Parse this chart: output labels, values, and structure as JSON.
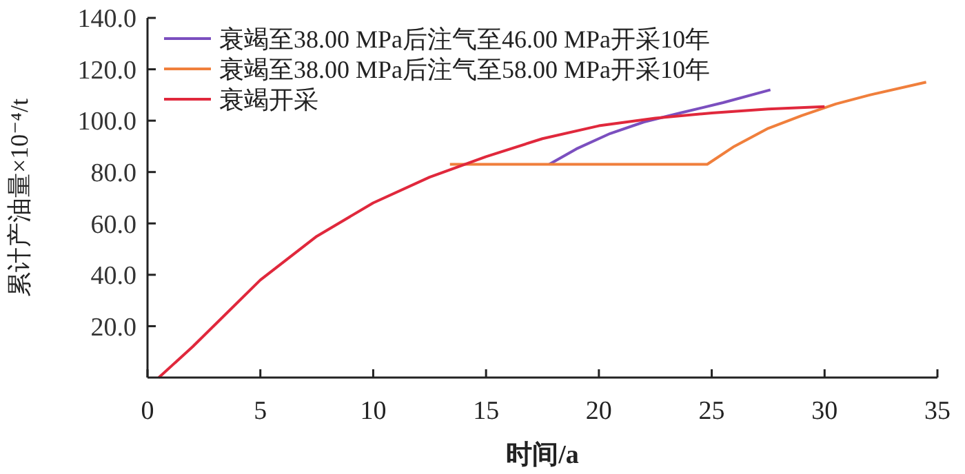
{
  "chart_data": {
    "type": "line",
    "xlabel": "时间/a",
    "ylabel": "累计产油量×10⁻⁴/t",
    "xlim": [
      0,
      35
    ],
    "xticks": [
      0,
      5,
      10,
      15,
      20,
      25,
      30,
      35
    ],
    "ylim": [
      0,
      140
    ],
    "yticks": [
      {
        "value": 20,
        "label": "20.0"
      },
      {
        "value": 40,
        "label": "40.0"
      },
      {
        "value": 60,
        "label": "60.0"
      },
      {
        "value": 80,
        "label": "80.0"
      },
      {
        "value": 100,
        "label": "100.0"
      },
      {
        "value": 120,
        "label": "120.0"
      },
      {
        "value": 140,
        "label": "140.0"
      }
    ],
    "grid": false,
    "legend": "top left",
    "marker": "none",
    "line_style": "solid",
    "series": [
      {
        "name": "衰竭至38.00 MPa后注气至46.00 MPa开采10年",
        "color": "#7b4fbf",
        "x": [
          17.8,
          19,
          20.5,
          22,
          23.6,
          25.5,
          27.6
        ],
        "values": [
          83,
          89,
          95,
          99.5,
          103,
          107,
          112
        ]
      },
      {
        "name": "衰竭至38.00 MPa后注气至58.00 MPa开采10年",
        "color": "#f07f3c",
        "x": [
          13.4,
          24.8,
          26,
          27.5,
          29,
          30.5,
          32,
          34.5
        ],
        "values": [
          83,
          83,
          90,
          97,
          102,
          106.5,
          110,
          115
        ]
      },
      {
        "name": "衰竭开采",
        "color": "#e0283c",
        "x": [
          0.5,
          2,
          5,
          7.5,
          10,
          12.5,
          15,
          17.5,
          20,
          22.5,
          25,
          27.5,
          30
        ],
        "values": [
          0,
          12,
          38,
          55,
          68,
          78,
          86,
          93,
          98,
          101,
          103,
          104.5,
          105.5
        ]
      }
    ]
  }
}
